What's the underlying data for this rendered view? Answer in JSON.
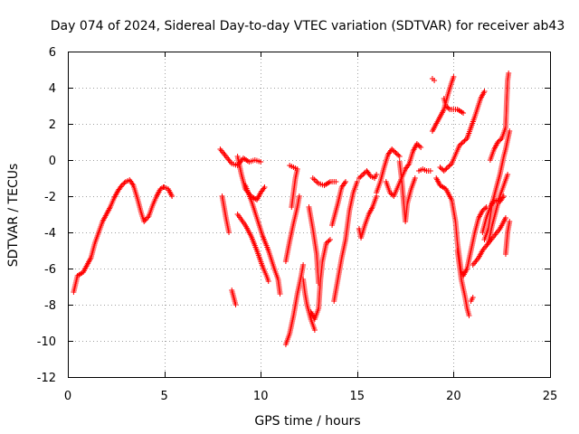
{
  "chart_data": {
    "type": "scatter",
    "title": "Day 074 of 2024, Sidereal Day-to-day VTEC variation (SDTVAR) for receiver ab43",
    "xlabel": "GPS time / hours",
    "ylabel": "SDTVAR / TECUs",
    "xlim": [
      0,
      25
    ],
    "ylim": [
      -12,
      6
    ],
    "xticks": [
      "0",
      "5",
      "10",
      "15",
      "20",
      "25"
    ],
    "yticks": [
      "-12",
      "-10",
      "-8",
      "-6",
      "-4",
      "-2",
      "0",
      "2",
      "4",
      "6"
    ],
    "grid": true,
    "marker": "+",
    "color": "#ff0000",
    "tracks": [
      [
        [
          0.3,
          -7.3
        ],
        [
          0.5,
          -6.4
        ],
        [
          0.8,
          -6.2
        ],
        [
          1.0,
          -5.8
        ],
        [
          1.2,
          -5.4
        ],
        [
          1.4,
          -4.6
        ],
        [
          1.6,
          -4.0
        ],
        [
          1.8,
          -3.4
        ],
        [
          2.0,
          -3.0
        ],
        [
          2.2,
          -2.6
        ],
        [
          2.4,
          -2.1
        ],
        [
          2.6,
          -1.7
        ],
        [
          2.8,
          -1.4
        ],
        [
          3.0,
          -1.2
        ],
        [
          3.2,
          -1.1
        ],
        [
          3.4,
          -1.4
        ],
        [
          3.6,
          -2.1
        ],
        [
          3.8,
          -2.9
        ],
        [
          3.95,
          -3.4
        ],
        [
          4.2,
          -3.1
        ],
        [
          4.4,
          -2.5
        ],
        [
          4.6,
          -2.0
        ],
        [
          4.8,
          -1.6
        ],
        [
          4.95,
          -1.5
        ]
      ],
      [
        [
          5.0,
          -1.5
        ],
        [
          5.2,
          -1.6
        ],
        [
          5.4,
          -2.0
        ]
      ],
      [
        [
          7.9,
          0.6
        ],
        [
          8.2,
          0.2
        ],
        [
          8.5,
          -0.2
        ],
        [
          8.8,
          -0.3
        ],
        [
          9.1,
          0.1
        ],
        [
          9.4,
          -0.1
        ],
        [
          9.7,
          0.0
        ],
        [
          10.0,
          -0.1
        ]
      ],
      [
        [
          8.0,
          -2.0
        ],
        [
          8.2,
          -3.2
        ],
        [
          8.35,
          -4.0
        ]
      ],
      [
        [
          8.5,
          -7.2
        ],
        [
          8.6,
          -7.6
        ],
        [
          8.7,
          -8.0
        ]
      ],
      [
        [
          8.8,
          0.2
        ],
        [
          9.0,
          -0.8
        ],
        [
          9.2,
          -1.6
        ],
        [
          9.5,
          -2.0
        ],
        [
          9.8,
          -2.2
        ],
        [
          10.0,
          -1.8
        ],
        [
          10.2,
          -1.5
        ]
      ],
      [
        [
          8.8,
          -3.0
        ],
        [
          9.2,
          -3.6
        ],
        [
          9.5,
          -4.2
        ],
        [
          9.8,
          -5.0
        ],
        [
          10.1,
          -5.9
        ],
        [
          10.3,
          -6.4
        ],
        [
          10.4,
          -6.7
        ]
      ],
      [
        [
          9.2,
          -1.4
        ],
        [
          9.5,
          -2.2
        ],
        [
          9.8,
          -3.2
        ],
        [
          10.1,
          -4.2
        ],
        [
          10.4,
          -5.0
        ],
        [
          10.7,
          -6.0
        ],
        [
          10.9,
          -6.6
        ],
        [
          11.0,
          -7.4
        ]
      ],
      [
        [
          11.5,
          -0.3
        ],
        [
          11.7,
          -0.4
        ],
        [
          11.9,
          -0.5
        ],
        [
          11.8,
          -1.0
        ],
        [
          11.7,
          -1.8
        ],
        [
          11.6,
          -2.6
        ]
      ],
      [
        [
          11.3,
          -5.6
        ],
        [
          11.5,
          -4.5
        ],
        [
          11.7,
          -3.5
        ],
        [
          11.9,
          -2.6
        ],
        [
          12.0,
          -2.0
        ]
      ],
      [
        [
          11.3,
          -10.2
        ],
        [
          11.5,
          -9.6
        ],
        [
          11.7,
          -8.6
        ],
        [
          11.9,
          -7.4
        ],
        [
          12.1,
          -6.4
        ],
        [
          12.2,
          -5.8
        ]
      ],
      [
        [
          12.2,
          -6.6
        ],
        [
          12.3,
          -7.4
        ],
        [
          12.4,
          -8.0
        ],
        [
          12.6,
          -8.8
        ],
        [
          12.8,
          -9.4
        ]
      ],
      [
        [
          12.6,
          -8.4
        ],
        [
          12.8,
          -8.8
        ],
        [
          13.0,
          -8.2
        ],
        [
          13.1,
          -6.6
        ],
        [
          13.2,
          -5.6
        ],
        [
          13.4,
          -4.6
        ],
        [
          13.6,
          -4.4
        ]
      ],
      [
        [
          12.5,
          -2.6
        ],
        [
          12.7,
          -3.8
        ],
        [
          12.9,
          -5.2
        ],
        [
          13.0,
          -6.8
        ]
      ],
      [
        [
          12.7,
          -1.0
        ],
        [
          13.0,
          -1.3
        ],
        [
          13.3,
          -1.4
        ],
        [
          13.6,
          -1.2
        ],
        [
          13.9,
          -1.2
        ]
      ],
      [
        [
          13.7,
          -3.6
        ],
        [
          13.9,
          -2.8
        ],
        [
          14.0,
          -2.4
        ],
        [
          14.2,
          -1.5
        ],
        [
          14.4,
          -1.2
        ]
      ],
      [
        [
          13.8,
          -7.8
        ],
        [
          14.0,
          -6.6
        ],
        [
          14.2,
          -5.4
        ],
        [
          14.4,
          -4.4
        ],
        [
          14.5,
          -3.6
        ],
        [
          14.6,
          -2.8
        ],
        [
          14.8,
          -1.8
        ],
        [
          15.0,
          -1.2
        ]
      ],
      [
        [
          15.1,
          -1.0
        ],
        [
          15.3,
          -0.8
        ],
        [
          15.5,
          -0.6
        ],
        [
          15.7,
          -0.9
        ],
        [
          15.9,
          -1.0
        ],
        [
          16.0,
          -0.8
        ]
      ],
      [
        [
          15.1,
          -3.8
        ],
        [
          15.2,
          -4.3
        ],
        [
          15.4,
          -3.6
        ],
        [
          15.6,
          -3.0
        ],
        [
          15.8,
          -2.6
        ],
        [
          16.0,
          -2.0
        ]
      ],
      [
        [
          16.0,
          -1.8
        ],
        [
          16.2,
          -1.2
        ],
        [
          16.4,
          -0.4
        ],
        [
          16.6,
          0.3
        ],
        [
          16.8,
          0.6
        ],
        [
          17.0,
          0.4
        ],
        [
          17.2,
          0.2
        ]
      ],
      [
        [
          16.5,
          -1.2
        ],
        [
          16.7,
          -1.8
        ],
        [
          16.9,
          -2.0
        ],
        [
          17.1,
          -1.5
        ],
        [
          17.3,
          -1.0
        ],
        [
          17.5,
          -0.5
        ],
        [
          17.7,
          -0.2
        ],
        [
          17.9,
          0.5
        ],
        [
          18.1,
          0.9
        ],
        [
          18.3,
          0.7
        ]
      ],
      [
        [
          17.2,
          -0.1
        ],
        [
          17.3,
          -1.0
        ],
        [
          17.4,
          -2.2
        ],
        [
          17.5,
          -3.4
        ],
        [
          17.6,
          -2.4
        ],
        [
          17.8,
          -1.6
        ],
        [
          18.0,
          -1.0
        ]
      ],
      [
        [
          18.2,
          -0.6
        ],
        [
          18.4,
          -0.5
        ],
        [
          18.6,
          -0.6
        ],
        [
          18.8,
          -0.6
        ]
      ],
      [
        [
          18.9,
          4.5
        ],
        [
          19.0,
          4.4
        ]
      ],
      [
        [
          18.9,
          1.6
        ],
        [
          19.2,
          2.2
        ],
        [
          19.5,
          2.8
        ],
        [
          19.7,
          3.6
        ],
        [
          19.9,
          4.3
        ],
        [
          20.0,
          4.6
        ]
      ],
      [
        [
          19.5,
          3.4
        ],
        [
          19.6,
          3.0
        ],
        [
          19.8,
          2.8
        ],
        [
          20.0,
          2.8
        ],
        [
          20.2,
          2.8
        ],
        [
          20.5,
          2.6
        ]
      ],
      [
        [
          19.3,
          -0.4
        ],
        [
          19.5,
          -0.6
        ],
        [
          19.7,
          -0.4
        ],
        [
          19.9,
          -0.2
        ],
        [
          20.1,
          0.3
        ],
        [
          20.3,
          0.8
        ],
        [
          20.5,
          1.0
        ],
        [
          20.7,
          1.2
        ],
        [
          21.1,
          2.4
        ],
        [
          21.4,
          3.4
        ],
        [
          21.6,
          3.8
        ]
      ],
      [
        [
          19.1,
          -1.0
        ],
        [
          19.3,
          -1.4
        ],
        [
          19.6,
          -1.6
        ],
        [
          19.9,
          -2.2
        ],
        [
          20.1,
          -3.4
        ],
        [
          20.2,
          -4.6
        ],
        [
          20.3,
          -5.4
        ],
        [
          20.4,
          -6.2
        ],
        [
          20.5,
          -6.4
        ],
        [
          20.7,
          -6.0
        ],
        [
          20.9,
          -5.0
        ],
        [
          21.1,
          -4.0
        ],
        [
          21.3,
          -3.2
        ],
        [
          21.5,
          -2.8
        ],
        [
          21.7,
          -2.6
        ]
      ],
      [
        [
          20.2,
          -5.0
        ],
        [
          20.4,
          -6.6
        ],
        [
          20.6,
          -7.6
        ],
        [
          20.7,
          -8.2
        ],
        [
          20.8,
          -8.6
        ]
      ],
      [
        [
          20.9,
          -7.8
        ],
        [
          21.0,
          -7.6
        ]
      ],
      [
        [
          21.0,
          -5.8
        ],
        [
          21.3,
          -5.4
        ],
        [
          21.5,
          -5.0
        ],
        [
          21.8,
          -4.6
        ],
        [
          22.1,
          -4.2
        ],
        [
          22.4,
          -3.8
        ],
        [
          22.7,
          -3.2
        ]
      ],
      [
        [
          21.5,
          -4.0
        ],
        [
          21.7,
          -3.2
        ],
        [
          21.9,
          -2.6
        ],
        [
          22.1,
          -2.2
        ],
        [
          22.4,
          -2.3
        ],
        [
          22.6,
          -2.0
        ]
      ],
      [
        [
          21.6,
          -4.4
        ],
        [
          21.8,
          -3.8
        ],
        [
          22.0,
          -2.4
        ],
        [
          22.2,
          -1.6
        ],
        [
          22.4,
          -0.8
        ],
        [
          22.6,
          0.2
        ],
        [
          22.7,
          0.6
        ],
        [
          22.9,
          1.6
        ]
      ],
      [
        [
          21.8,
          -4.6
        ],
        [
          22.0,
          -3.6
        ],
        [
          22.2,
          -2.8
        ],
        [
          22.4,
          -2.0
        ],
        [
          22.6,
          -1.4
        ],
        [
          22.8,
          -0.8
        ]
      ],
      [
        [
          21.9,
          0.0
        ],
        [
          22.1,
          0.6
        ],
        [
          22.3,
          1.0
        ],
        [
          22.5,
          1.2
        ],
        [
          22.7,
          1.8
        ],
        [
          22.75,
          3.2
        ],
        [
          22.8,
          4.4
        ],
        [
          22.85,
          4.8
        ]
      ],
      [
        [
          22.7,
          -5.2
        ],
        [
          22.8,
          -4.0
        ],
        [
          22.9,
          -3.4
        ]
      ]
    ]
  }
}
